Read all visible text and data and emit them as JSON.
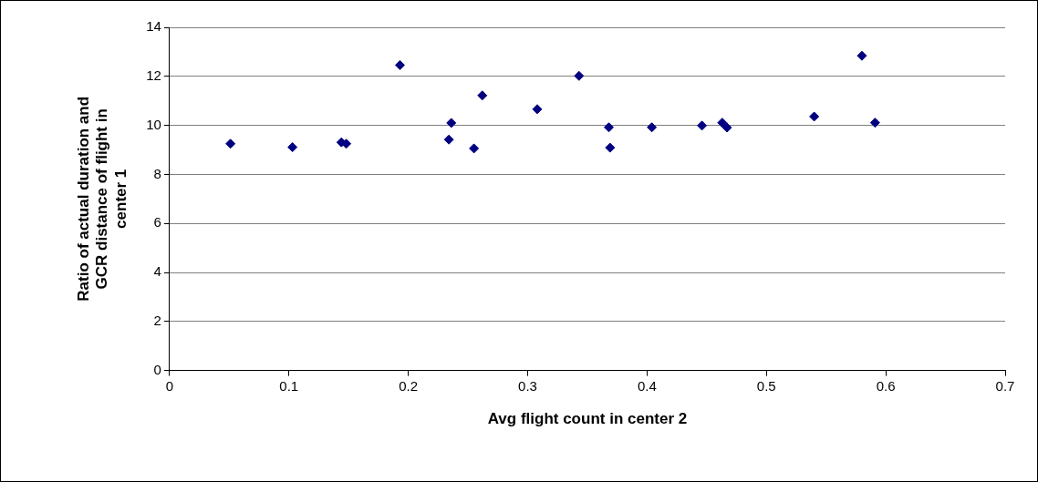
{
  "chart_data": {
    "type": "scatter",
    "xlabel": "Avg flight count in center 2",
    "ylabel": "Ratio of actual duration and GCR distance of flight in center 1",
    "series": [
      {
        "color": "#000080",
        "x": [
          0.051,
          0.103,
          0.144,
          0.148,
          0.193,
          0.234,
          0.236,
          0.255,
          0.262,
          0.308,
          0.343,
          0.368,
          0.369,
          0.404,
          0.446,
          0.463,
          0.467,
          0.54,
          0.58,
          0.591
        ],
        "values": [
          9.25,
          9.11,
          9.31,
          9.25,
          12.46,
          9.42,
          10.1,
          9.06,
          11.22,
          10.66,
          12.02,
          9.92,
          9.09,
          9.92,
          9.99,
          10.11,
          9.91,
          10.36,
          12.84,
          10.11
        ]
      }
    ],
    "xlim": [
      0,
      0.7
    ],
    "xticks": [
      0,
      0.1,
      0.2,
      0.3,
      0.4,
      0.5,
      0.6,
      0.7
    ],
    "ylim": [
      0,
      14
    ],
    "yticks": [
      0,
      2,
      4,
      6,
      8,
      10,
      12,
      14
    ],
    "grid": "y",
    "legend": false,
    "marker": "diamond"
  }
}
